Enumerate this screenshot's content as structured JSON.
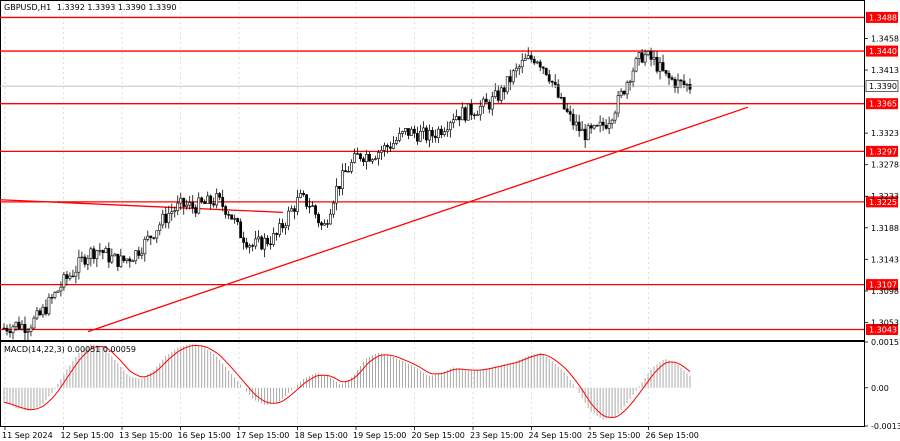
{
  "header": {
    "title": "GBPUSD,H1",
    "ohlc": "1.3392 1.3393 1.3390 1.3390"
  },
  "macd_header": "MACD(14,22,3) 0.00051 0.00059",
  "current_price": "1.3390",
  "colors": {
    "level_line": "#ff0000",
    "level_label_bg": "#ff0000",
    "candle": "#000000",
    "grid": "#c8c8c8",
    "macd_hist": "#a0a0a0",
    "macd_signal": "#ff0000"
  },
  "chart_data": {
    "type": "candlestick",
    "instrument": "GBPUSD",
    "timeframe": "H1",
    "y_range": [
      1.3028,
      1.351
    ],
    "price_axis_ticks": [
      "1.3458",
      "1.3413",
      "1.3323",
      "1.3278",
      "1.3233",
      "1.3188",
      "1.3143",
      "1.3098",
      "1.3053"
    ],
    "support_resistance_levels": [
      "1.3488",
      "1.3440",
      "1.3365",
      "1.3297",
      "1.3225",
      "1.3107",
      "1.3043"
    ],
    "time_labels": [
      "11 Sep 2024",
      "12 Sep 15:00",
      "13 Sep 15:00",
      "16 Sep 15:00",
      "17 Sep 15:00",
      "18 Sep 15:00",
      "19 Sep 15:00",
      "20 Sep 15:00",
      "23 Sep 15:00",
      "24 Sep 15:00",
      "25 Sep 15:00",
      "26 Sep 15:00"
    ],
    "trend_lines": [
      {
        "name": "ascending",
        "from": [
          "11 Sep 2024",
          1.3035
        ],
        "to": [
          "26 Sep 15:00",
          1.336
        ]
      },
      {
        "name": "descending",
        "from": [
          "11 Sep 2024",
          1.3228
        ],
        "to": [
          "17 Sep 15:00",
          1.321
        ]
      }
    ],
    "price_path": [
      1.3045,
      1.305,
      1.3048,
      1.3062,
      1.3085,
      1.311,
      1.3128,
      1.315,
      1.3158,
      1.3145,
      1.314,
      1.315,
      1.3168,
      1.319,
      1.321,
      1.322,
      1.3218,
      1.3222,
      1.3228,
      1.3212,
      1.318,
      1.3162,
      1.3168,
      1.3175,
      1.3205,
      1.323,
      1.322,
      1.3185,
      1.324,
      1.327,
      1.3292,
      1.3292,
      1.33,
      1.331,
      1.3325,
      1.3322,
      1.3318,
      1.333,
      1.3348,
      1.3352,
      1.3358,
      1.3365,
      1.338,
      1.3405,
      1.3425,
      1.3432,
      1.341,
      1.3368,
      1.334,
      1.3322,
      1.3325,
      1.334,
      1.337,
      1.341,
      1.3435,
      1.3425,
      1.3402,
      1.3394,
      1.339
    ],
    "macd": {
      "axis_ticks": [
        "0.00157",
        "0.00",
        "-0.00131"
      ],
      "range": [
        -0.00131,
        0.00157
      ],
      "values": [
        -0.0005,
        -0.0007,
        -0.0008,
        -0.0006,
        -0.0001,
        0.0006,
        0.0012,
        0.0015,
        0.0014,
        0.0009,
        0.0004,
        0.0003,
        0.0006,
        0.0011,
        0.0014,
        0.0015,
        0.0014,
        0.0011,
        0.0006,
        0.0001,
        -0.0004,
        -0.0006,
        -0.0005,
        -0.0001,
        0.0003,
        0.0005,
        0.0004,
        0.0001,
        0.0004,
        0.001,
        0.0012,
        0.0011,
        0.0009,
        0.0007,
        0.0004,
        0.0005,
        0.0007,
        0.0006,
        0.0006,
        0.0007,
        0.0008,
        0.0009,
        0.0011,
        0.0012,
        0.0009,
        0.0005,
        -0.0001,
        -0.0008,
        -0.0011,
        -0.001,
        -0.0005,
        0.0001,
        0.0007,
        0.001,
        0.0008,
        0.0004
      ]
    }
  }
}
